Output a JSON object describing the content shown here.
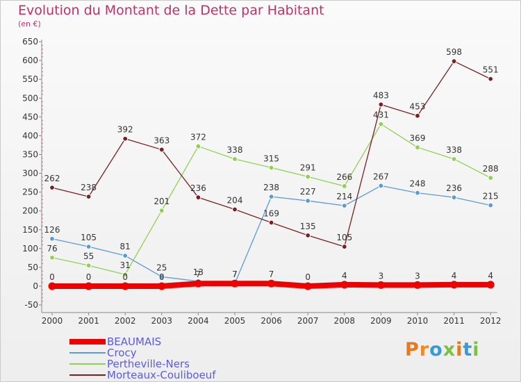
{
  "header": {
    "title": "Evolution du Montant de la Dette par Habitant",
    "unit": "(en €)"
  },
  "logo": {
    "text": "Proxiti",
    "letters": [
      {
        "ch": "P",
        "color": "#e8791c"
      },
      {
        "ch": "r",
        "color": "#f08a24"
      },
      {
        "ch": "o",
        "color": "#3a9ad9"
      },
      {
        "ch": "x",
        "color": "#7cc242"
      },
      {
        "ch": "i",
        "color": "#e8791c"
      },
      {
        "ch": "t",
        "color": "#3a9ad9"
      },
      {
        "ch": "i",
        "color": "#7cc242"
      }
    ]
  },
  "chart_data": {
    "type": "line",
    "title": "Evolution du Montant de la Dette par Habitant",
    "ylabel": "(en €)",
    "x": [
      2000,
      2001,
      2002,
      2003,
      2004,
      2005,
      2006,
      2007,
      2008,
      2009,
      2010,
      2011,
      2012
    ],
    "ylim": [
      -50,
      650
    ],
    "yticks": [
      -50,
      0,
      50,
      100,
      150,
      200,
      250,
      300,
      350,
      400,
      450,
      500,
      550,
      600,
      650
    ],
    "grid": false,
    "legend_position": "bottom-left",
    "series": [
      {
        "name": "BEAUMAIS",
        "color": "#ee0000",
        "width": 8,
        "values": [
          0,
          0,
          0,
          0,
          7,
          7,
          7,
          0,
          4,
          3,
          3,
          4,
          4
        ],
        "labels": [
          "0",
          "0",
          "0",
          "0",
          "7",
          "7",
          "7",
          "0",
          "4",
          "3",
          "3",
          "4",
          "4"
        ]
      },
      {
        "name": "Crocy",
        "color": "#5b9bd5",
        "width": 1.3,
        "values": [
          126,
          105,
          81,
          25,
          13,
          7,
          238,
          227,
          214,
          267,
          248,
          236,
          215
        ],
        "labels": [
          "126",
          "105",
          "81",
          "25",
          "13",
          "7",
          "238",
          "227",
          "214",
          "267",
          "248",
          "236",
          "215"
        ]
      },
      {
        "name": "Pertheville-Ners",
        "color": "#8ed152",
        "width": 1.3,
        "values": [
          76,
          55,
          31,
          201,
          372,
          338,
          315,
          291,
          266,
          431,
          369,
          338,
          288
        ],
        "labels": [
          "76",
          "55",
          "31",
          "201",
          "372",
          "338",
          "315",
          "291",
          "266",
          "431",
          "369",
          "338",
          "288"
        ]
      },
      {
        "name": "Morteaux-Couliboeuf",
        "color": "#7a1f22",
        "width": 1.3,
        "values": [
          262,
          238,
          392,
          363,
          236,
          204,
          169,
          135,
          105,
          483,
          453,
          598,
          551
        ],
        "labels": [
          "262",
          "238",
          "392",
          "363",
          "236",
          "204",
          "169",
          "135",
          "105",
          "483",
          "453",
          "598",
          "551"
        ]
      }
    ]
  }
}
